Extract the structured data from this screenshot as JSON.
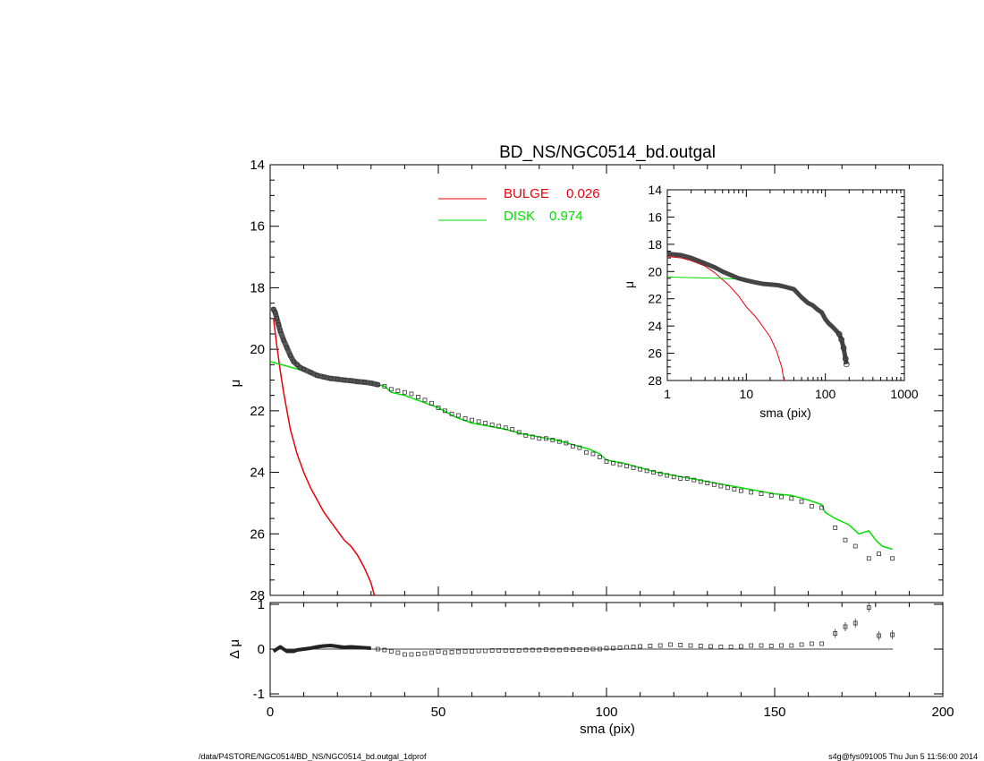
{
  "chart_data": [
    {
      "type": "line",
      "title": "BD_NS/NGC0514_bd.outgal",
      "xlabel": "",
      "ylabel": "μ",
      "xlim": [
        0,
        200
      ],
      "ylim": [
        28,
        14
      ],
      "y_reversed": true,
      "yticks": [
        "14",
        "16",
        "18",
        "20",
        "22",
        "24",
        "26",
        "28"
      ],
      "legend": [
        {
          "name": "BULGE",
          "value": "0.026",
          "color": "#e8000b"
        },
        {
          "name": "DISK",
          "value": "0.974",
          "color": "#00e000"
        }
      ],
      "series": [
        {
          "name": "BULGE",
          "color": "#e8000b",
          "x": [
            1,
            2,
            3,
            4,
            5,
            6,
            7,
            8,
            10,
            12,
            14,
            16,
            18,
            20,
            22,
            24,
            26,
            28,
            30,
            31
          ],
          "y": [
            19.0,
            19.9,
            20.7,
            21.4,
            22.0,
            22.6,
            23.0,
            23.4,
            24.0,
            24.5,
            24.9,
            25.3,
            25.6,
            25.9,
            26.2,
            26.4,
            26.7,
            27.1,
            27.6,
            28.0
          ]
        },
        {
          "name": "DISK",
          "color": "#00e000",
          "x": [
            0,
            10,
            20,
            30,
            34,
            36,
            40,
            45,
            50,
            55,
            60,
            65,
            70,
            75,
            80,
            85,
            90,
            95,
            98,
            100,
            105,
            110,
            115,
            120,
            125,
            130,
            135,
            140,
            145,
            150,
            155,
            160,
            164,
            165,
            168,
            170,
            172,
            175,
            178,
            180,
            182,
            185
          ],
          "y": [
            20.4,
            20.7,
            20.95,
            21.1,
            21.2,
            21.4,
            21.5,
            21.7,
            21.9,
            22.2,
            22.4,
            22.5,
            22.6,
            22.75,
            22.85,
            22.95,
            23.1,
            23.25,
            23.4,
            23.6,
            23.7,
            23.85,
            24.0,
            24.1,
            24.2,
            24.3,
            24.4,
            24.5,
            24.6,
            24.7,
            24.75,
            24.9,
            25.05,
            25.3,
            25.5,
            25.6,
            25.7,
            26.0,
            25.9,
            26.2,
            26.4,
            26.5
          ]
        },
        {
          "name": "data",
          "color": "#555555",
          "x": [
            1,
            1.5,
            2,
            2.5,
            3,
            4,
            5,
            6,
            7,
            8,
            9,
            10,
            12,
            14,
            16,
            18,
            20,
            22,
            24,
            26,
            28,
            30,
            32,
            34,
            36,
            38,
            40,
            42,
            44,
            46,
            48,
            50,
            52,
            54,
            56,
            58,
            60,
            62,
            64,
            66,
            68,
            70,
            72,
            74,
            76,
            78,
            80,
            82,
            84,
            86,
            88,
            90,
            92,
            94,
            96,
            98,
            100,
            102,
            104,
            106,
            108,
            110,
            112,
            114,
            116,
            118,
            120,
            122,
            124,
            126,
            128,
            130,
            132,
            134,
            136,
            138,
            140,
            143,
            146,
            149,
            152,
            155,
            158,
            161,
            164,
            168,
            171,
            174,
            178,
            181,
            185
          ],
          "y": [
            18.7,
            18.8,
            19.0,
            19.2,
            19.4,
            19.7,
            19.95,
            20.2,
            20.4,
            20.5,
            20.6,
            20.65,
            20.75,
            20.85,
            20.9,
            20.95,
            20.97,
            21.0,
            21.02,
            21.05,
            21.07,
            21.1,
            21.15,
            21.2,
            21.3,
            21.35,
            21.4,
            21.45,
            21.55,
            21.65,
            21.75,
            21.9,
            22.0,
            22.1,
            22.15,
            22.25,
            22.3,
            22.35,
            22.4,
            22.45,
            22.5,
            22.55,
            22.6,
            22.7,
            22.8,
            22.85,
            22.9,
            22.9,
            22.95,
            23.0,
            23.05,
            23.15,
            23.2,
            23.35,
            23.4,
            23.5,
            23.65,
            23.7,
            23.75,
            23.8,
            23.85,
            23.9,
            23.95,
            24.0,
            24.05,
            24.1,
            24.15,
            24.2,
            24.2,
            24.25,
            24.3,
            24.35,
            24.4,
            24.45,
            24.5,
            24.55,
            24.6,
            24.65,
            24.7,
            24.75,
            24.8,
            24.85,
            24.95,
            25.1,
            25.15,
            25.8,
            26.2,
            26.4,
            26.8,
            26.65,
            26.8
          ]
        }
      ]
    },
    {
      "type": "scatter",
      "xlabel": "sma (pix)",
      "ylabel": "Δ μ",
      "xlim": [
        0,
        200
      ],
      "ylim": [
        -1,
        1
      ],
      "yticks": [
        "1",
        "0",
        "-1"
      ],
      "xticks": [
        "0",
        "50",
        "100",
        "150",
        "200"
      ],
      "residuals": {
        "x": [
          1,
          2,
          3,
          4,
          5,
          6,
          7,
          8,
          10,
          12,
          14,
          16,
          18,
          20,
          22,
          24,
          26,
          28,
          30,
          32,
          34,
          36,
          38,
          40,
          42,
          44,
          46,
          48,
          50,
          52,
          54,
          56,
          58,
          60,
          62,
          64,
          66,
          68,
          70,
          72,
          74,
          76,
          78,
          80,
          82,
          84,
          86,
          88,
          90,
          92,
          94,
          96,
          98,
          100,
          102,
          104,
          106,
          108,
          110,
          113,
          116,
          119,
          122,
          125,
          128,
          131,
          134,
          137,
          140,
          143,
          146,
          149,
          152,
          155,
          158,
          161,
          164,
          168,
          171,
          174,
          178,
          181,
          185
        ],
        "y": [
          -0.05,
          0.0,
          0.05,
          0.0,
          -0.05,
          -0.05,
          -0.05,
          -0.02,
          0.0,
          0.02,
          0.05,
          0.07,
          0.08,
          0.06,
          0.04,
          0.05,
          0.04,
          0.03,
          0.02,
          0.0,
          -0.02,
          -0.05,
          -0.08,
          -0.12,
          -0.12,
          -0.11,
          -0.1,
          -0.08,
          -0.05,
          -0.08,
          -0.07,
          -0.06,
          -0.05,
          -0.05,
          -0.04,
          -0.04,
          -0.03,
          -0.03,
          -0.03,
          -0.03,
          -0.03,
          -0.02,
          -0.02,
          -0.02,
          -0.01,
          -0.02,
          -0.02,
          -0.01,
          -0.01,
          -0.01,
          -0.01,
          0.0,
          0.0,
          0.02,
          0.02,
          0.03,
          0.04,
          0.05,
          0.06,
          0.07,
          0.08,
          0.1,
          0.09,
          0.08,
          0.07,
          0.06,
          0.05,
          0.05,
          0.06,
          0.08,
          0.08,
          0.07,
          0.08,
          0.08,
          0.1,
          0.12,
          0.12,
          0.35,
          0.5,
          0.58,
          0.93,
          0.3,
          0.32
        ]
      }
    },
    {
      "type": "line",
      "inset": true,
      "xlabel": "sma (pix)",
      "ylabel": "μ",
      "x_scale": "log",
      "xlim": [
        1,
        1000
      ],
      "ylim": [
        28,
        14
      ],
      "y_reversed": true,
      "xticks": [
        "1",
        "10",
        "100",
        "1000"
      ],
      "yticks": [
        "14",
        "16",
        "18",
        "20",
        "22",
        "24",
        "26",
        "28"
      ],
      "series": [
        {
          "name": "BULGE",
          "color": "#e8000b",
          "x": [
            1,
            1.5,
            2,
            3,
            4,
            5,
            6,
            8,
            10,
            13,
            16,
            20,
            24,
            28,
            30
          ],
          "y": [
            18.9,
            19.0,
            19.2,
            19.6,
            20.1,
            20.6,
            21.0,
            21.8,
            22.6,
            23.3,
            24.0,
            24.8,
            25.8,
            27.0,
            28.0
          ]
        },
        {
          "name": "DISK",
          "color": "#00e000",
          "x": [
            1,
            2,
            5,
            10,
            20,
            30
          ],
          "y": [
            20.4,
            20.45,
            20.5,
            20.6,
            20.9,
            21.1
          ]
        },
        {
          "name": "data",
          "color": "#444444",
          "x": [
            1,
            1.5,
            2,
            3,
            4,
            5,
            6,
            8,
            10,
            13,
            16,
            20,
            25,
            30,
            40,
            50,
            60,
            70,
            80,
            90,
            100,
            110,
            120,
            130,
            140,
            150,
            160,
            170,
            180,
            185
          ],
          "y": [
            18.7,
            18.8,
            19.0,
            19.4,
            19.7,
            20.0,
            20.2,
            20.5,
            20.65,
            20.8,
            20.9,
            20.95,
            21.0,
            21.1,
            21.3,
            21.9,
            22.3,
            22.5,
            22.8,
            23.0,
            23.5,
            23.8,
            24.0,
            24.2,
            24.4,
            24.6,
            25.0,
            25.6,
            26.4,
            26.8
          ]
        }
      ]
    }
  ],
  "footer": {
    "path": "/data/P4STORE/NGC0514/BD_NS/NGC0514_bd.outgal_1dprof",
    "stamp": "s4g@fys091005  Thu Jun  5 11:56:00 2014"
  }
}
